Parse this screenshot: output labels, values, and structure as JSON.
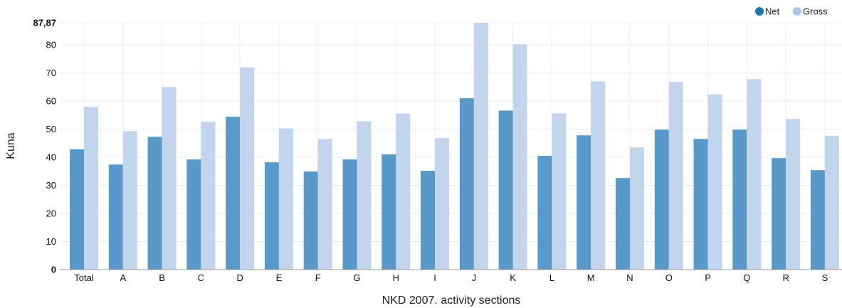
{
  "chart_data": {
    "type": "bar",
    "categories": [
      "Total",
      "A",
      "B",
      "C",
      "D",
      "E",
      "F",
      "G",
      "H",
      "I",
      "J",
      "K",
      "L",
      "M",
      "N",
      "O",
      "P",
      "Q",
      "R",
      "S"
    ],
    "series": [
      {
        "name": "Net",
        "color": "#5899c9",
        "values": [
          42.8,
          37.4,
          47.3,
          39.2,
          54.4,
          38.2,
          34.9,
          39.2,
          41.0,
          35.2,
          61.0,
          56.6,
          40.5,
          47.8,
          32.6,
          49.8,
          46.5,
          49.8,
          39.7,
          35.4
        ]
      },
      {
        "name": "Gross",
        "color": "#c2d5ec",
        "values": [
          57.9,
          49.3,
          65.0,
          52.6,
          72.0,
          50.3,
          46.5,
          52.8,
          55.6,
          46.8,
          87.87,
          80.2,
          55.6,
          67.0,
          43.5,
          66.8,
          62.4,
          67.8,
          53.6,
          47.6
        ]
      }
    ],
    "y_ticks": [
      "0",
      "10",
      "20",
      "30",
      "40",
      "50",
      "60",
      "70",
      "80"
    ],
    "y_max_label": "87,87",
    "ylim": [
      0,
      87.87
    ],
    "xlabel": "NKD 2007. activity sections",
    "ylabel": "Kuna",
    "grid": true,
    "legend_position": "top-right"
  }
}
